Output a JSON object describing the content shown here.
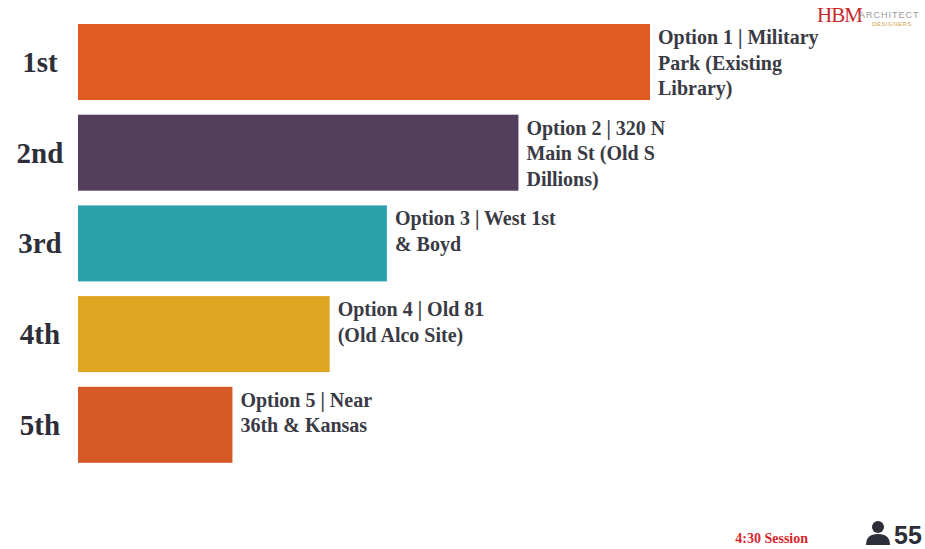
{
  "chart_data": {
    "type": "bar",
    "orientation": "horizontal",
    "categories": [
      "1st",
      "2nd",
      "3rd",
      "4th",
      "5th"
    ],
    "values": [
      100,
      77,
      54,
      44,
      27
    ],
    "colors": [
      "#e05a22",
      "#533e5e",
      "#2aa1ab",
      "#dea623",
      "#d65a25"
    ],
    "xlim": [
      0,
      100
    ],
    "tick_labels": false,
    "grid": false,
    "annotations": [
      [
        "Option 1 | Military",
        "Park (Existing",
        "Library)"
      ],
      [
        "Option 2 | 320 N",
        "Main St (Old S",
        "Dillions)"
      ],
      [
        "Option 3 | West 1st",
        "& Boyd"
      ],
      [
        "Option 4 | Old 81",
        "(Old Alco Site)"
      ],
      [
        "Option 5 | Near",
        "36th & Kansas"
      ]
    ],
    "session": "4:30 Session",
    "participants": 55,
    "logo": [
      "HBM",
      "ARCHITECT",
      "DESIGNERS"
    ]
  }
}
